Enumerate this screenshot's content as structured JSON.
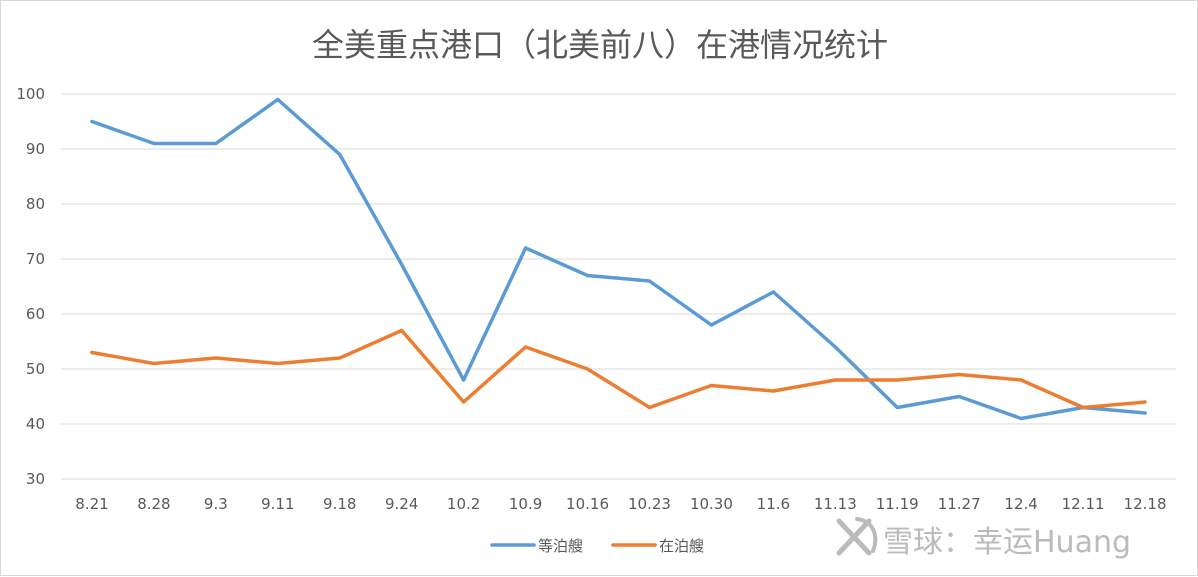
{
  "chart_data": {
    "type": "line",
    "title": "全美重点港口（北美前八）在港情况统计",
    "xlabel": "",
    "ylabel": "",
    "categories": [
      "8.21",
      "8.28",
      "9.3",
      "9.11",
      "9.18",
      "9.24",
      "10.2",
      "10.9",
      "10.16",
      "10.23",
      "10.30",
      "11.6",
      "11.13",
      "11.19",
      "11.27",
      "12.4",
      "12.11",
      "12.18"
    ],
    "y_ticks": [
      "30",
      "40",
      "50",
      "60",
      "70",
      "80",
      "90",
      "100"
    ],
    "ylim": [
      30,
      100
    ],
    "grid": "horizontal",
    "legend_position": "bottom",
    "series": [
      {
        "name": "等泊艘",
        "color": "#5b9bd5",
        "values": [
          95,
          91,
          91,
          99,
          89,
          69,
          48,
          72,
          67,
          66,
          58,
          64,
          54,
          43,
          45,
          41,
          43,
          42
        ]
      },
      {
        "name": "在泊艘",
        "color": "#ed7d31",
        "values": [
          53,
          51,
          52,
          51,
          52,
          57,
          44,
          54,
          50,
          43,
          47,
          46,
          48,
          48,
          49,
          48,
          43,
          44
        ]
      }
    ]
  },
  "watermark": {
    "text": "雪球：幸运Huang"
  }
}
